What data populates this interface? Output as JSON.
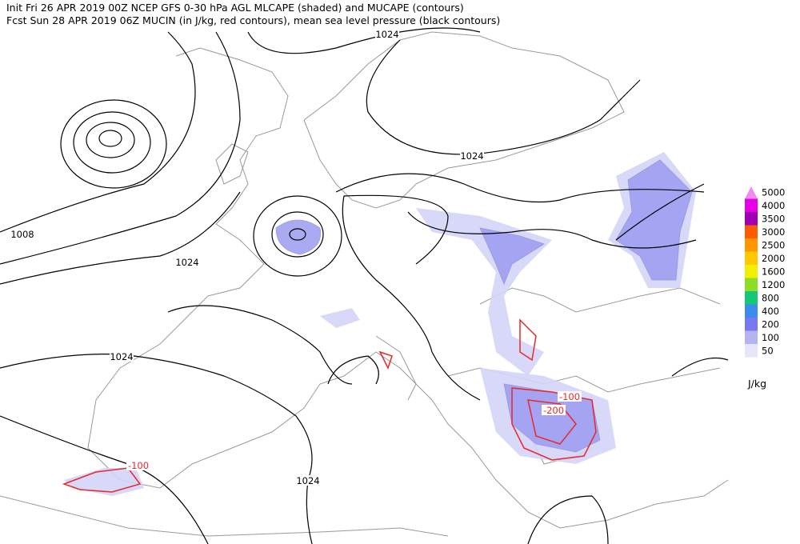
{
  "header": {
    "line1": "Init  Fri 26 APR 2019 00Z   NCEP GFS 0-30 hPa AGL MLCAPE (shaded) and MUCAPE (contours)",
    "line2": "Fcst Sun 28 APR 2019 06Z  MUCIN (in J/kg, red contours), mean sea level pressure (black contours)"
  },
  "contour_labels": [
    "1024",
    "1024",
    "1008",
    "1024",
    "1024",
    "1024",
    "-100",
    "-100",
    "-200"
  ],
  "legend": {
    "unit": "J/kg",
    "levels": [
      {
        "label": "5000",
        "color": "#f08cf0"
      },
      {
        "label": "4000",
        "color": "#e600e6"
      },
      {
        "label": "3500",
        "color": "#a000b4"
      },
      {
        "label": "3000",
        "color": "#ff5a00"
      },
      {
        "label": "2500",
        "color": "#ff9600"
      },
      {
        "label": "2000",
        "color": "#ffc800"
      },
      {
        "label": "1600",
        "color": "#f0f000"
      },
      {
        "label": "1200",
        "color": "#8cdc28"
      },
      {
        "label": "800",
        "color": "#14c878"
      },
      {
        "label": "400",
        "color": "#3c8cf0"
      },
      {
        "label": "200",
        "color": "#7878f0"
      },
      {
        "label": "100",
        "color": "#b4b4f0"
      },
      {
        "label": "50",
        "color": "#e6e6fa"
      }
    ]
  }
}
